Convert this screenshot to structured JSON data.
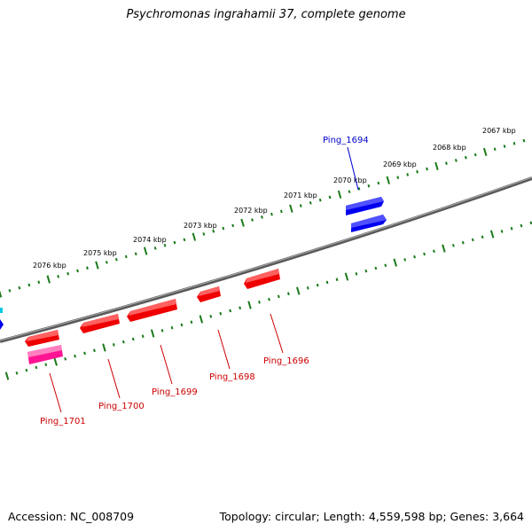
{
  "title": "Psychromonas ingrahamii 37, complete genome",
  "footer": {
    "accession": "Accession: NC_008709",
    "summary": "Topology: circular; Length: 4,559,598 bp; Genes: 3,664"
  },
  "scale": {
    "tick_labels": [
      "2067 kbp",
      "2068 kbp",
      "2069 kbp",
      "2070 kbp",
      "2071 kbp",
      "2072 kbp",
      "2073 kbp",
      "2074 kbp",
      "2075 kbp",
      "2076 kbp"
    ]
  },
  "genes": [
    {
      "label": "Ping_1694",
      "strand": "+",
      "color": "#0000ee"
    },
    {
      "label": "Ping_1696",
      "strand": "-",
      "color": "#dd0000"
    },
    {
      "label": "Ping_1698",
      "strand": "-",
      "color": "#dd0000"
    },
    {
      "label": "Ping_1699",
      "strand": "-",
      "color": "#dd0000"
    },
    {
      "label": "Ping_1700",
      "strand": "-",
      "color": "#dd0000"
    },
    {
      "label": "Ping_1701",
      "strand": "-",
      "color": "#dd0000"
    }
  ],
  "colors": {
    "backbone": "#777777",
    "forward_genes": "#0000ee",
    "reverse_genes": "#ee0000",
    "reverse_genes_alt": "#ff1493",
    "scale_ticks": "#1a7a1a"
  }
}
